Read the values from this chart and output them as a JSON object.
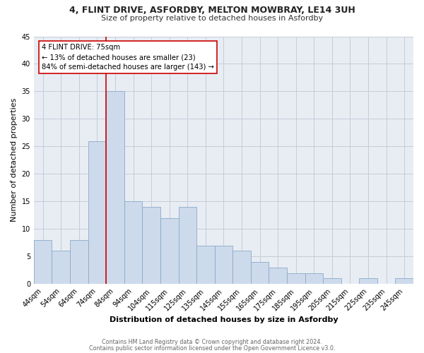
{
  "title_line1": "4, FLINT DRIVE, ASFORDBY, MELTON MOWBRAY, LE14 3UH",
  "title_line2": "Size of property relative to detached houses in Asfordby",
  "xlabel": "Distribution of detached houses by size in Asfordby",
  "ylabel": "Number of detached properties",
  "categories": [
    "44sqm",
    "54sqm",
    "64sqm",
    "74sqm",
    "84sqm",
    "94sqm",
    "104sqm",
    "115sqm",
    "125sqm",
    "135sqm",
    "145sqm",
    "155sqm",
    "165sqm",
    "175sqm",
    "185sqm",
    "195sqm",
    "205sqm",
    "215sqm",
    "225sqm",
    "235sqm",
    "245sqm"
  ],
  "values": [
    8,
    6,
    8,
    26,
    35,
    15,
    14,
    12,
    14,
    7,
    7,
    6,
    4,
    3,
    2,
    2,
    1,
    0,
    1,
    0,
    1
  ],
  "bar_color": "#cddaeb",
  "bar_edge_color": "#8aaac8",
  "vline_color": "#cc0000",
  "annotation_text_line1": "4 FLINT DRIVE: 75sqm",
  "annotation_text_line2": "← 13% of detached houses are smaller (23)",
  "annotation_text_line3": "84% of semi-detached houses are larger (143) →",
  "annotation_box_facecolor": "#ffffff",
  "annotation_box_edgecolor": "#cc0000",
  "ylim": [
    0,
    45
  ],
  "yticks": [
    0,
    5,
    10,
    15,
    20,
    25,
    30,
    35,
    40,
    45
  ],
  "footnote_line1": "Contains HM Land Registry data © Crown copyright and database right 2024.",
  "footnote_line2": "Contains public sector information licensed under the Open Government Licence v3.0.",
  "plot_bg_color": "#e8edf4",
  "fig_bg_color": "#ffffff",
  "grid_color": "#c5cdd8",
  "title1_fontsize": 9.0,
  "title2_fontsize": 8.0,
  "tick_fontsize": 7.0,
  "axis_label_fontsize": 8.0,
  "annotation_fontsize": 7.2,
  "footnote_fontsize": 5.8
}
